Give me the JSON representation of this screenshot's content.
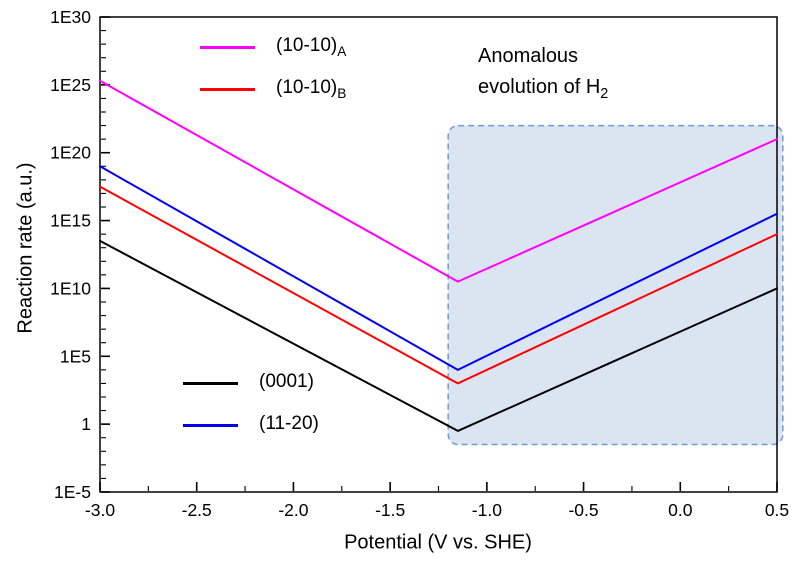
{
  "chart_data": {
    "type": "line",
    "title": "",
    "xlabel": "Potential (V vs. SHE)",
    "ylabel": "Reaction rate (a.u.)",
    "xlim": [
      -3.0,
      0.5
    ],
    "x_ticks": [
      -3.0,
      -2.5,
      -2.0,
      -1.5,
      -1.0,
      -0.5,
      0.0,
      0.5
    ],
    "x_tick_labels": [
      "-3.0",
      "-2.5",
      "-2.0",
      "-1.5",
      "-1.0",
      "-0.5",
      "0.0",
      "0.5"
    ],
    "y_scale": "log10",
    "ylim_log": [
      -5,
      30
    ],
    "y_tick_exponents": [
      30,
      25,
      20,
      15,
      10,
      5,
      0,
      -5
    ],
    "y_tick_labels": [
      "1E30",
      "1E25",
      "1E20",
      "1E15",
      "1E10",
      "1E5",
      "1",
      "1E-5"
    ],
    "grid": false,
    "series": [
      {
        "name": "(10-10)",
        "name_sub": "A",
        "color": "#ff00ff",
        "x": [
          -3.0,
          -1.15,
          0.5
        ],
        "log10_y": [
          25.3,
          10.5,
          21.0
        ]
      },
      {
        "name": "(10-10)",
        "name_sub": "B",
        "color": "#ff0000",
        "x": [
          -3.0,
          -1.15,
          0.5
        ],
        "log10_y": [
          17.5,
          3.0,
          14.0
        ]
      },
      {
        "name": "(0001)",
        "name_sub": "",
        "color": "#000000",
        "x": [
          -3.0,
          -1.15,
          0.5
        ],
        "log10_y": [
          13.5,
          -0.5,
          10.0
        ]
      },
      {
        "name": "(11-20)",
        "name_sub": "",
        "color": "#0000ee",
        "x": [
          -3.0,
          -1.15,
          0.5
        ],
        "log10_y": [
          19.0,
          4.0,
          15.5
        ]
      }
    ],
    "highlight_region": {
      "x_range": [
        -1.2,
        0.53
      ],
      "log10_y_range": [
        -1.5,
        22.0
      ],
      "fill": "#dbe5f1",
      "border": "#6b9bd2",
      "label_line1": "Anomalous",
      "label_line2": "evolution of H",
      "label_line2_sub": "2"
    },
    "legend_top_series_indices": [
      0,
      1
    ],
    "legend_bottom_series_indices": [
      2,
      3
    ]
  }
}
